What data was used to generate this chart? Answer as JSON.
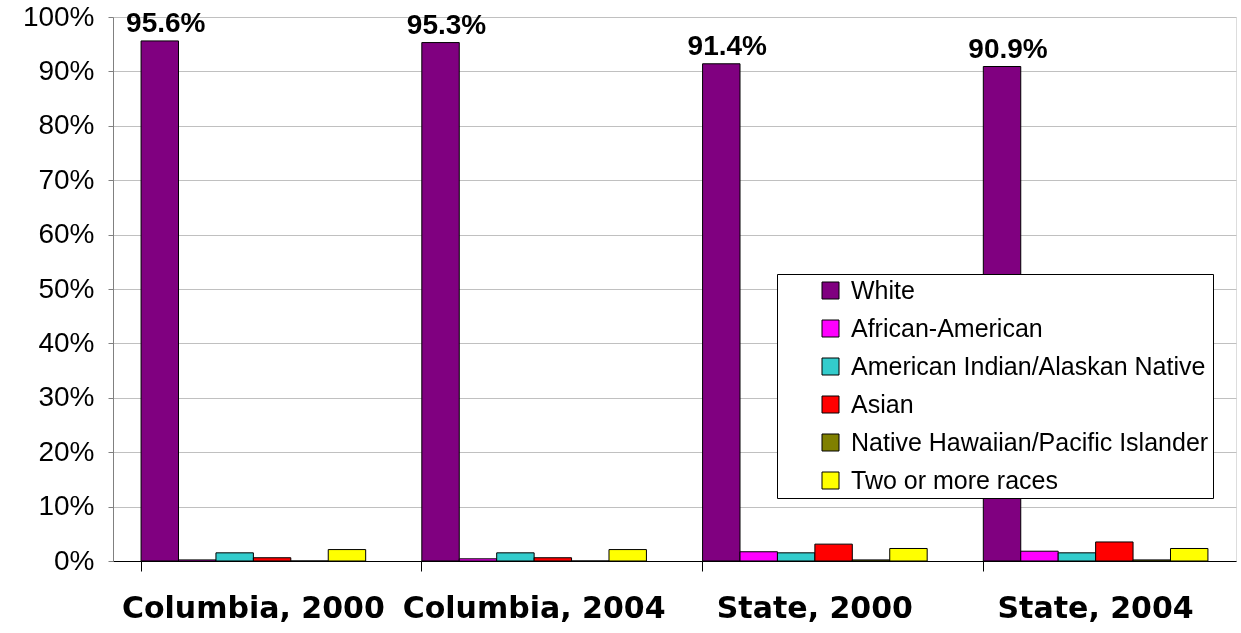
{
  "chart_data": {
    "type": "bar",
    "categories": [
      "Columbia, 2000",
      "Columbia, 2004",
      "State, 2000",
      "State, 2004"
    ],
    "series": [
      {
        "name": "White",
        "color": "#800080",
        "values": [
          95.6,
          95.3,
          91.4,
          90.9
        ],
        "value_labels": [
          "95.6%",
          "95.3%",
          "91.4%",
          "90.9%"
        ]
      },
      {
        "name": "African-American",
        "color": "#ff00ff",
        "values": [
          0.2,
          0.4,
          1.7,
          1.8
        ]
      },
      {
        "name": "American Indian/Alaskan Native",
        "color": "#33cccc",
        "values": [
          1.5,
          1.5,
          1.5,
          1.5
        ]
      },
      {
        "name": "Asian",
        "color": "#ff0000",
        "values": [
          0.6,
          0.6,
          3.1,
          3.5
        ]
      },
      {
        "name": "Native Hawaiian/Pacific Islander",
        "color": "#808000",
        "values": [
          0.0,
          0.0,
          0.2,
          0.2
        ]
      },
      {
        "name": "Two or more races",
        "color": "#ffff00",
        "values": [
          2.1,
          2.1,
          2.3,
          2.3
        ]
      }
    ],
    "ylim": [
      0,
      100
    ],
    "yticks": [
      {
        "value": 0,
        "label": "0%"
      },
      {
        "value": 10,
        "label": "10%"
      },
      {
        "value": 20,
        "label": "20%"
      },
      {
        "value": 30,
        "label": "30%"
      },
      {
        "value": 40,
        "label": "40%"
      },
      {
        "value": 50,
        "label": "50%"
      },
      {
        "value": 60,
        "label": "60%"
      },
      {
        "value": 70,
        "label": "70%"
      },
      {
        "value": 80,
        "label": "80%"
      },
      {
        "value": 90,
        "label": "90%"
      },
      {
        "value": 100,
        "label": "100%"
      }
    ],
    "grid": "y",
    "legend": "right"
  }
}
